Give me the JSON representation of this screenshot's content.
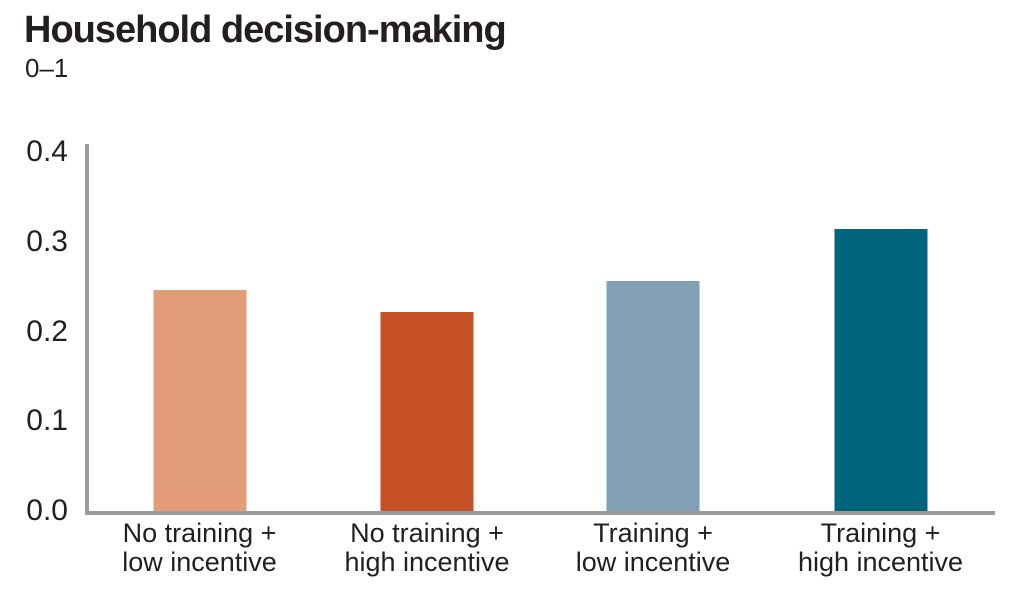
{
  "header": {
    "title": "Household decision-making",
    "subtitle": "0–1"
  },
  "chart_data": {
    "type": "bar",
    "title": "Household decision-making",
    "subtitle": "0–1",
    "ylabel": "",
    "xlabel": "",
    "categories": [
      "No training +\nlow incentive",
      "No training +\nhigh incentive",
      "Training +\nlow incentive",
      "Training +\nhigh incentive"
    ],
    "values": [
      0.246,
      0.222,
      0.256,
      0.314
    ],
    "bar_colors": [
      "#e29c77",
      "#c75126",
      "#81a0b3",
      "#00657c"
    ],
    "yticks": [
      0.4,
      0.3,
      0.2,
      0.1,
      0.0
    ],
    "ytick_labels": [
      "0.4",
      "0.3",
      "0.2",
      "0.1",
      "0.0"
    ],
    "ylim": [
      0,
      0.4
    ],
    "grid": false,
    "legend": false,
    "axis_color": "#9a9a9a",
    "text_color": "#231f20",
    "background_color": "#ffffff"
  }
}
